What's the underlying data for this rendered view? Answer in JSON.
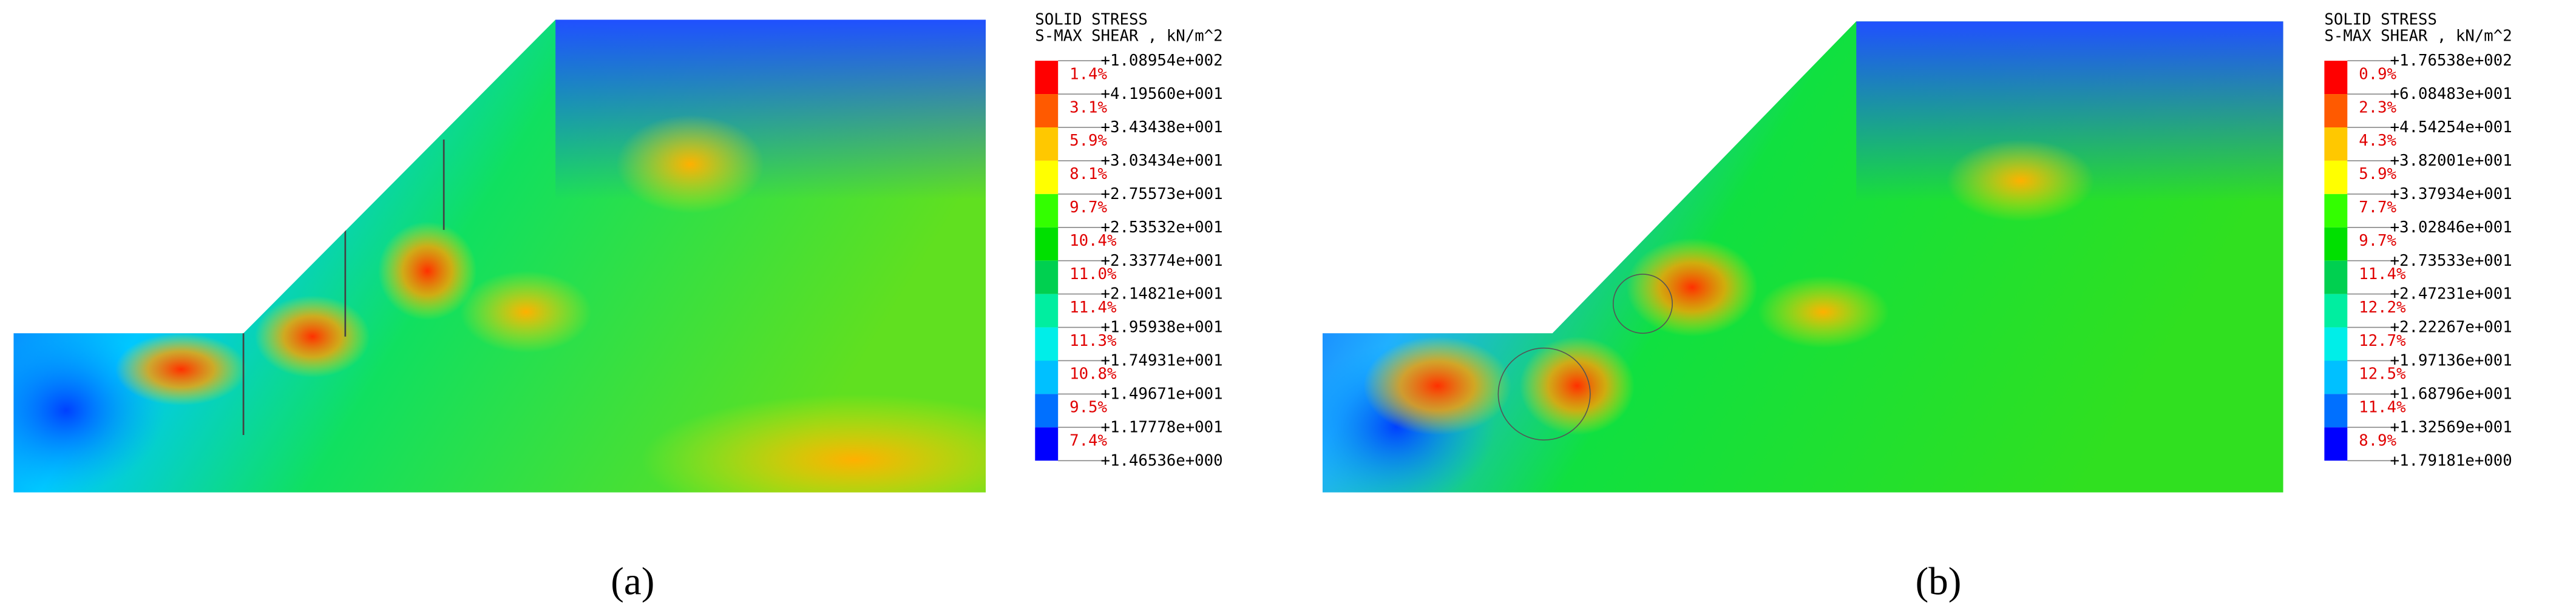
{
  "panels": [
    {
      "caption": "(a)",
      "legend": {
        "title": "SOLID STRESS",
        "subtitle": "S-MAX SHEAR , kN/m^2",
        "levels": [
          "+1.08954e+002",
          "+4.19560e+001",
          "+3.43438e+001",
          "+3.03434e+001",
          "+2.75573e+001",
          "+2.53532e+001",
          "+2.33774e+001",
          "+2.14821e+001",
          "+1.95938e+001",
          "+1.74931e+001",
          "+1.49671e+001",
          "+1.17778e+001",
          "+1.46536e+000"
        ],
        "percents": [
          "1.4%",
          "3.1%",
          "5.9%",
          "8.1%",
          "9.7%",
          "10.4%",
          "11.0%",
          "11.4%",
          "11.3%",
          "10.8%",
          "9.5%",
          "7.4%"
        ]
      }
    },
    {
      "caption": "(b)",
      "legend": {
        "title": "SOLID STRESS",
        "subtitle": "S-MAX SHEAR , kN/m^2",
        "levels": [
          "+1.76538e+002",
          "+6.08483e+001",
          "+4.54254e+001",
          "+3.82001e+001",
          "+3.37934e+001",
          "+3.02846e+001",
          "+2.73533e+001",
          "+2.47231e+001",
          "+2.22267e+001",
          "+1.97136e+001",
          "+1.68796e+001",
          "+1.32569e+001",
          "+1.79181e+000"
        ],
        "percents": [
          "0.9%",
          "2.3%",
          "4.3%",
          "5.9%",
          "7.7%",
          "9.7%",
          "11.4%",
          "12.2%",
          "12.7%",
          "12.5%",
          "11.4%",
          "8.9%"
        ]
      }
    }
  ],
  "band_colors": [
    "#ff0000",
    "#ff5a00",
    "#ffc800",
    "#ffff00",
    "#33ff00",
    "#00e000",
    "#00d050",
    "#00eea0",
    "#00eee8",
    "#00c0ff",
    "#0070ff",
    "#0000ff"
  ]
}
